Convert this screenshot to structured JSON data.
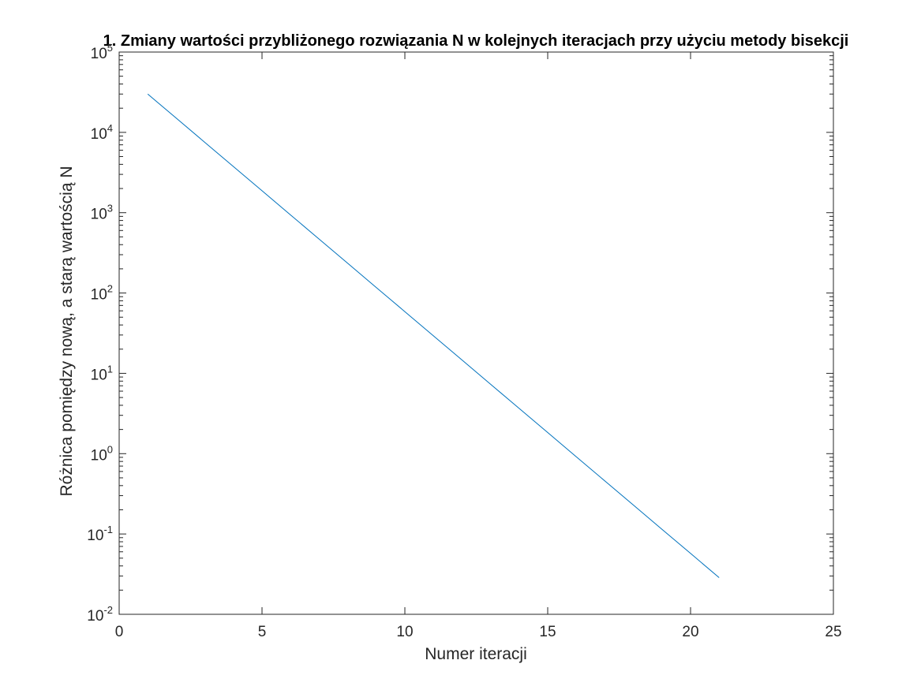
{
  "chart_data": {
    "type": "line",
    "title": "1. Zmiany wartości przybliżonego rozwiązania N  w kolejnych iteracjach przy użyciu metody bisekcji",
    "xlabel": "Numer iteracji",
    "ylabel": "Różnica pomiędzy nową, a starą wartością N",
    "xlim": [
      0,
      25
    ],
    "ylim": [
      0.01,
      100000
    ],
    "yscale": "log",
    "grid": false,
    "x_ticks": [
      0,
      5,
      10,
      15,
      20,
      25
    ],
    "x_tick_labels": [
      "0",
      "5",
      "10",
      "15",
      "20",
      "25"
    ],
    "y_ticks": [
      0.01,
      0.1,
      1,
      10,
      100,
      1000,
      10000,
      100000
    ],
    "y_tick_labels": [
      {
        "base": "10",
        "exp": "-2"
      },
      {
        "base": "10",
        "exp": "-1"
      },
      {
        "base": "10",
        "exp": "0"
      },
      {
        "base": "10",
        "exp": "1"
      },
      {
        "base": "10",
        "exp": "2"
      },
      {
        "base": "10",
        "exp": "3"
      },
      {
        "base": "10",
        "exp": "4"
      },
      {
        "base": "10",
        "exp": "5"
      }
    ],
    "series": [
      {
        "color": "#0072BD",
        "x": [
          1,
          2,
          3,
          4,
          5,
          6,
          7,
          8,
          9,
          10,
          11,
          12,
          13,
          14,
          15,
          16,
          17,
          18,
          19,
          20,
          21
        ],
        "y": [
          30000,
          15000,
          7500,
          3750,
          1875,
          937.5,
          468.75,
          234.375,
          117.1875,
          58.59375,
          29.296875,
          14.6484375,
          7.32421875,
          3.662109375,
          1.8310546875,
          0.91552734375,
          0.457763671875,
          0.2288818359375,
          0.11444091796875,
          0.057220458984375,
          0.0286102294921875
        ]
      }
    ]
  }
}
